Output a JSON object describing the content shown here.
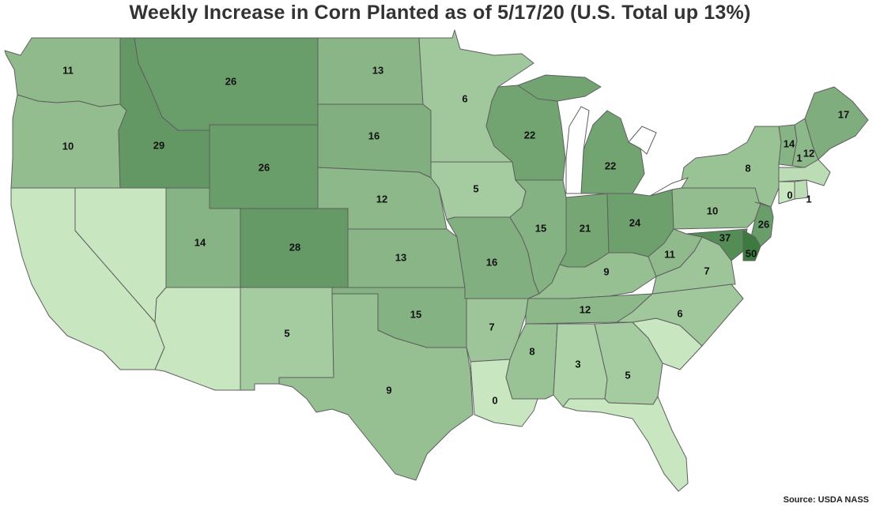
{
  "title": "Weekly Increase in Corn Planted as of 5/17/20 (U.S. Total up 13%)",
  "source": "Source: USDA NASS",
  "color_scale": {
    "min_value": 0,
    "max_value": 50,
    "min_color": "#c8e6c0",
    "max_color": "#3c7a40",
    "no_data_color": "#c8e6c0"
  },
  "states": [
    {
      "code": "WA",
      "name": "Washington",
      "value": "11"
    },
    {
      "code": "OR",
      "name": "Oregon",
      "value": "10"
    },
    {
      "code": "ID",
      "name": "Idaho",
      "value": "29"
    },
    {
      "code": "MT",
      "name": "Montana",
      "value": "26"
    },
    {
      "code": "WY",
      "name": "Wyoming",
      "value": "26"
    },
    {
      "code": "ND",
      "name": "North Dakota",
      "value": "13"
    },
    {
      "code": "SD",
      "name": "South Dakota",
      "value": "16"
    },
    {
      "code": "NE",
      "name": "Nebraska",
      "value": "12"
    },
    {
      "code": "KS",
      "name": "Kansas",
      "value": "13"
    },
    {
      "code": "CO",
      "name": "Colorado",
      "value": "28"
    },
    {
      "code": "UT",
      "name": "Utah",
      "value": "14"
    },
    {
      "code": "NV",
      "name": "Nevada",
      "value": ""
    },
    {
      "code": "CA",
      "name": "California",
      "value": ""
    },
    {
      "code": "AZ",
      "name": "Arizona",
      "value": ""
    },
    {
      "code": "NM",
      "name": "New Mexico",
      "value": "5"
    },
    {
      "code": "TX",
      "name": "Texas",
      "value": "9"
    },
    {
      "code": "OK",
      "name": "Oklahoma",
      "value": "15"
    },
    {
      "code": "MN",
      "name": "Minnesota",
      "value": "6"
    },
    {
      "code": "IA",
      "name": "Iowa",
      "value": "5"
    },
    {
      "code": "MO",
      "name": "Missouri",
      "value": "16"
    },
    {
      "code": "AR",
      "name": "Arkansas",
      "value": "7"
    },
    {
      "code": "LA",
      "name": "Louisiana",
      "value": "0"
    },
    {
      "code": "WI",
      "name": "Wisconsin",
      "value": "22"
    },
    {
      "code": "IL",
      "name": "Illinois",
      "value": "15"
    },
    {
      "code": "MI",
      "name": "Michigan",
      "value": "22"
    },
    {
      "code": "IN",
      "name": "Indiana",
      "value": "21"
    },
    {
      "code": "OH",
      "name": "Ohio",
      "value": "24"
    },
    {
      "code": "KY",
      "name": "Kentucky",
      "value": "9"
    },
    {
      "code": "TN",
      "name": "Tennessee",
      "value": "12"
    },
    {
      "code": "MS",
      "name": "Mississippi",
      "value": "8"
    },
    {
      "code": "AL",
      "name": "Alabama",
      "value": "3"
    },
    {
      "code": "GA",
      "name": "Georgia",
      "value": "5"
    },
    {
      "code": "FL",
      "name": "Florida",
      "value": ""
    },
    {
      "code": "SC",
      "name": "South Carolina",
      "value": ""
    },
    {
      "code": "NC",
      "name": "North Carolina",
      "value": "6"
    },
    {
      "code": "VA",
      "name": "Virginia",
      "value": "7"
    },
    {
      "code": "WV",
      "name": "West Virginia",
      "value": "11"
    },
    {
      "code": "PA",
      "name": "Pennsylvania",
      "value": "10"
    },
    {
      "code": "NY",
      "name": "New York",
      "value": "8"
    },
    {
      "code": "NJ",
      "name": "New Jersey",
      "value": "26"
    },
    {
      "code": "DE",
      "name": "Delaware",
      "value": "50"
    },
    {
      "code": "MD",
      "name": "Maryland",
      "value": "37"
    },
    {
      "code": "VT",
      "name": "Vermont",
      "value": "14"
    },
    {
      "code": "NH",
      "name": "New Hampshire",
      "value": "12"
    },
    {
      "code": "ME",
      "name": "Maine",
      "value": "17"
    },
    {
      "code": "MA",
      "name": "Massachusetts",
      "value": "1"
    },
    {
      "code": "CT",
      "name": "Connecticut",
      "value": "0"
    },
    {
      "code": "RI",
      "name": "Rhode Island",
      "value": "1"
    }
  ]
}
